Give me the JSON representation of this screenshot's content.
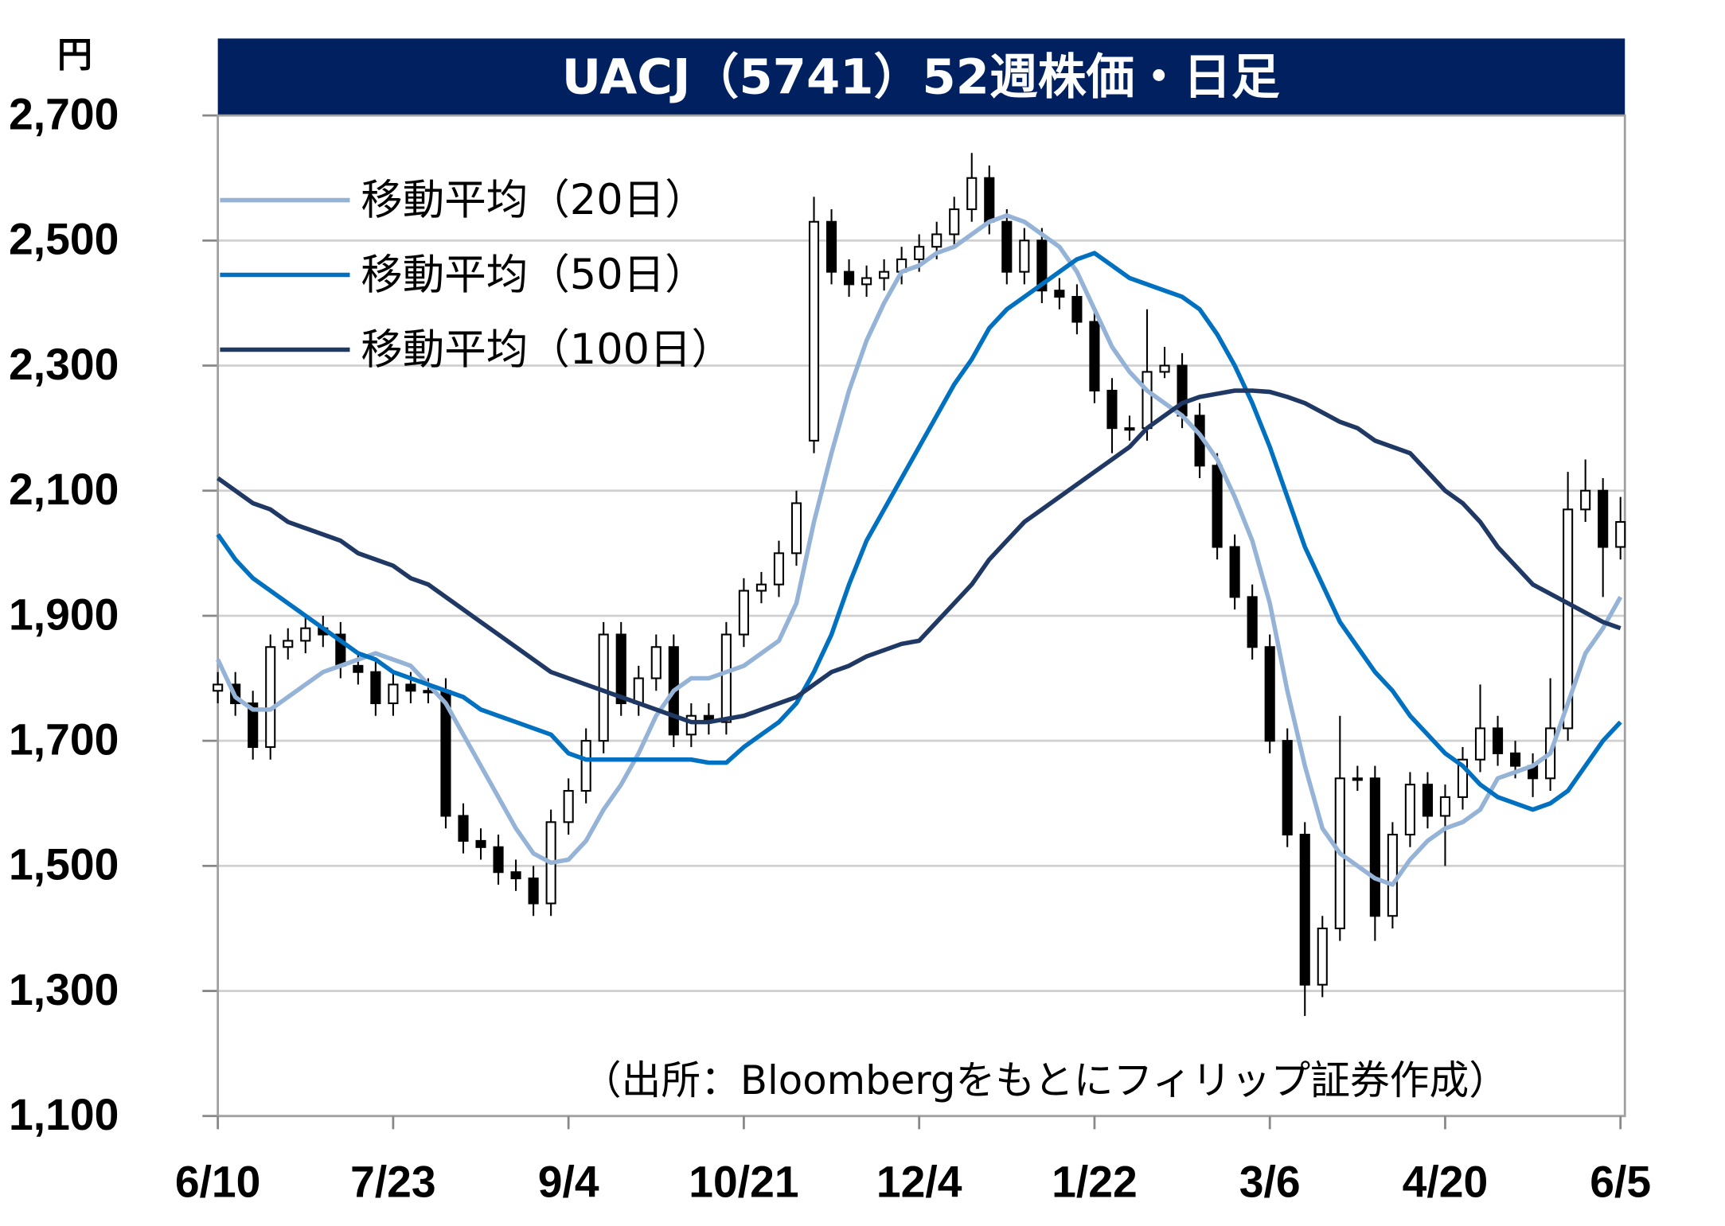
{
  "chart_data": {
    "type": "candlestick",
    "title": "UACJ（5741）52週株価・日足",
    "y_unit": "円",
    "source": "（出所：Bloombergをもとにフィリップ証券作成）",
    "categories": [
      "6/10",
      null,
      null,
      null,
      null,
      null,
      null,
      null,
      null,
      null,
      "7/23",
      null,
      null,
      null,
      null,
      null,
      null,
      null,
      null,
      null,
      "9/4",
      null,
      null,
      null,
      null,
      null,
      null,
      null,
      null,
      null,
      "10/21",
      null,
      null,
      null,
      null,
      null,
      null,
      null,
      null,
      null,
      "12/4",
      null,
      null,
      null,
      null,
      null,
      null,
      null,
      null,
      null,
      "1/22",
      null,
      null,
      null,
      null,
      null,
      null,
      null,
      null,
      null,
      "3/6",
      null,
      null,
      null,
      null,
      null,
      null,
      null,
      null,
      null,
      "4/20",
      null,
      null,
      null,
      null,
      null,
      null,
      null,
      null,
      null,
      "6/5"
    ],
    "candles": [
      [
        1780,
        1810,
        1760,
        1790
      ],
      [
        1790,
        1810,
        1740,
        1760
      ],
      [
        1760,
        1780,
        1670,
        1690
      ],
      [
        1690,
        1870,
        1670,
        1850
      ],
      [
        1850,
        1880,
        1830,
        1860
      ],
      [
        1860,
        1900,
        1840,
        1880
      ],
      [
        1880,
        1900,
        1850,
        1870
      ],
      [
        1870,
        1890,
        1800,
        1820
      ],
      [
        1820,
        1840,
        1790,
        1810
      ],
      [
        1810,
        1830,
        1740,
        1760
      ],
      [
        1760,
        1810,
        1740,
        1790
      ],
      [
        1790,
        1810,
        1760,
        1780
      ],
      [
        1780,
        1800,
        1760,
        1780
      ],
      [
        1780,
        1800,
        1560,
        1580
      ],
      [
        1580,
        1600,
        1520,
        1540
      ],
      [
        1540,
        1560,
        1510,
        1530
      ],
      [
        1530,
        1550,
        1470,
        1490
      ],
      [
        1490,
        1510,
        1460,
        1480
      ],
      [
        1480,
        1500,
        1420,
        1440
      ],
      [
        1440,
        1590,
        1420,
        1570
      ],
      [
        1570,
        1640,
        1550,
        1620
      ],
      [
        1620,
        1720,
        1600,
        1700
      ],
      [
        1700,
        1890,
        1680,
        1870
      ],
      [
        1870,
        1890,
        1740,
        1760
      ],
      [
        1760,
        1820,
        1740,
        1800
      ],
      [
        1800,
        1870,
        1780,
        1850
      ],
      [
        1850,
        1870,
        1690,
        1710
      ],
      [
        1710,
        1760,
        1690,
        1740
      ],
      [
        1740,
        1760,
        1710,
        1730
      ],
      [
        1730,
        1890,
        1710,
        1870
      ],
      [
        1870,
        1960,
        1850,
        1940
      ],
      [
        1940,
        1970,
        1920,
        1950
      ],
      [
        1950,
        2020,
        1930,
        2000
      ],
      [
        2000,
        2100,
        1980,
        2080
      ],
      [
        2180,
        2570,
        2160,
        2530
      ],
      [
        2530,
        2550,
        2430,
        2450
      ],
      [
        2450,
        2470,
        2410,
        2430
      ],
      [
        2430,
        2460,
        2410,
        2440
      ],
      [
        2440,
        2470,
        2420,
        2450
      ],
      [
        2450,
        2490,
        2430,
        2470
      ],
      [
        2470,
        2510,
        2450,
        2490
      ],
      [
        2490,
        2530,
        2470,
        2510
      ],
      [
        2510,
        2570,
        2490,
        2550
      ],
      [
        2550,
        2640,
        2530,
        2600
      ],
      [
        2600,
        2620,
        2510,
        2530
      ],
      [
        2530,
        2550,
        2430,
        2450
      ],
      [
        2450,
        2520,
        2430,
        2500
      ],
      [
        2500,
        2520,
        2400,
        2420
      ],
      [
        2420,
        2440,
        2390,
        2410
      ],
      [
        2410,
        2430,
        2350,
        2370
      ],
      [
        2370,
        2390,
        2240,
        2260
      ],
      [
        2260,
        2280,
        2160,
        2200
      ],
      [
        2200,
        2220,
        2180,
        2200
      ],
      [
        2200,
        2390,
        2180,
        2290
      ],
      [
        2290,
        2330,
        2280,
        2300
      ],
      [
        2300,
        2320,
        2200,
        2220
      ],
      [
        2220,
        2240,
        2120,
        2140
      ],
      [
        2140,
        2160,
        1990,
        2010
      ],
      [
        2010,
        2030,
        1910,
        1930
      ],
      [
        1930,
        1950,
        1830,
        1850
      ],
      [
        1850,
        1870,
        1680,
        1700
      ],
      [
        1700,
        1720,
        1530,
        1550
      ],
      [
        1550,
        1570,
        1260,
        1310
      ],
      [
        1310,
        1420,
        1290,
        1400
      ],
      [
        1400,
        1740,
        1380,
        1640
      ],
      [
        1640,
        1660,
        1620,
        1640
      ],
      [
        1640,
        1660,
        1380,
        1420
      ],
      [
        1420,
        1570,
        1400,
        1550
      ],
      [
        1550,
        1650,
        1530,
        1630
      ],
      [
        1630,
        1650,
        1560,
        1580
      ],
      [
        1580,
        1630,
        1500,
        1610
      ],
      [
        1610,
        1690,
        1590,
        1670
      ],
      [
        1670,
        1790,
        1650,
        1720
      ],
      [
        1720,
        1740,
        1660,
        1680
      ],
      [
        1680,
        1700,
        1640,
        1660
      ],
      [
        1660,
        1680,
        1610,
        1640
      ],
      [
        1640,
        1800,
        1620,
        1720
      ],
      [
        1720,
        2130,
        1700,
        2070
      ],
      [
        2070,
        2150,
        2050,
        2100
      ],
      [
        2100,
        2120,
        1930,
        2010
      ],
      [
        2010,
        2090,
        1990,
        2050
      ]
    ],
    "up_color": "#ffffff",
    "down_color": "#000000",
    "series": [
      {
        "name": "移動平均（20日）",
        "color": "#95b3d7",
        "values": [
          1830,
          1770,
          1750,
          1750,
          1770,
          1790,
          1810,
          1820,
          1830,
          1840,
          1830,
          1820,
          1790,
          1760,
          1710,
          1660,
          1610,
          1560,
          1520,
          1505,
          1510,
          1540,
          1590,
          1630,
          1680,
          1740,
          1780,
          1800,
          1800,
          1810,
          1820,
          1840,
          1860,
          1920,
          2050,
          2160,
          2260,
          2340,
          2400,
          2450,
          2460,
          2480,
          2490,
          2510,
          2530,
          2540,
          2530,
          2510,
          2490,
          2450,
          2390,
          2330,
          2290,
          2260,
          2240,
          2220,
          2190,
          2150,
          2090,
          2020,
          1920,
          1780,
          1660,
          1560,
          1520,
          1500,
          1480,
          1470,
          1510,
          1540,
          1560,
          1570,
          1590,
          1640,
          1650,
          1660,
          1680,
          1760,
          1840,
          1880,
          1930
        ]
      },
      {
        "name": "移動平均（50日）",
        "color": "#0070c0",
        "values": [
          2030,
          1990,
          1960,
          1940,
          1920,
          1900,
          1880,
          1860,
          1840,
          1830,
          1810,
          1800,
          1790,
          1780,
          1770,
          1750,
          1740,
          1730,
          1720,
          1710,
          1680,
          1670,
          1670,
          1670,
          1670,
          1670,
          1670,
          1670,
          1665,
          1665,
          1690,
          1710,
          1730,
          1760,
          1810,
          1870,
          1950,
          2020,
          2070,
          2120,
          2170,
          2220,
          2270,
          2310,
          2360,
          2390,
          2410,
          2430,
          2450,
          2470,
          2480,
          2460,
          2440,
          2430,
          2420,
          2410,
          2390,
          2350,
          2300,
          2240,
          2170,
          2090,
          2010,
          1950,
          1890,
          1850,
          1810,
          1780,
          1740,
          1710,
          1680,
          1660,
          1630,
          1610,
          1600,
          1590,
          1600,
          1620,
          1660,
          1700,
          1730
        ]
      },
      {
        "name": "移動平均（100日）",
        "color": "#1f3864",
        "values": [
          2120,
          2100,
          2080,
          2070,
          2050,
          2040,
          2030,
          2020,
          2000,
          1990,
          1980,
          1960,
          1950,
          1930,
          1910,
          1890,
          1870,
          1850,
          1830,
          1810,
          1800,
          1790,
          1780,
          1770,
          1760,
          1750,
          1740,
          1730,
          1730,
          1735,
          1740,
          1750,
          1760,
          1770,
          1790,
          1810,
          1820,
          1835,
          1845,
          1855,
          1860,
          1890,
          1920,
          1950,
          1990,
          2020,
          2050,
          2070,
          2090,
          2110,
          2130,
          2150,
          2170,
          2200,
          2220,
          2240,
          2250,
          2255,
          2260,
          2260,
          2258,
          2250,
          2240,
          2225,
          2210,
          2200,
          2180,
          2170,
          2160,
          2130,
          2100,
          2080,
          2050,
          2010,
          1980,
          1950,
          1935,
          1920,
          1905,
          1890,
          1880
        ]
      }
    ],
    "ylim": [
      1100,
      2700
    ],
    "yticks": [
      {
        "value": 1100,
        "label": "1,100"
      },
      {
        "value": 1300,
        "label": "1,300"
      },
      {
        "value": 1500,
        "label": "1,500"
      },
      {
        "value": 1700,
        "label": "1,700"
      },
      {
        "value": 1900,
        "label": "1,900"
      },
      {
        "value": 2100,
        "label": "2,100"
      },
      {
        "value": 2300,
        "label": "2,300"
      },
      {
        "value": 2500,
        "label": "2,500"
      },
      {
        "value": 2700,
        "label": "2,700"
      }
    ],
    "grid": true
  }
}
